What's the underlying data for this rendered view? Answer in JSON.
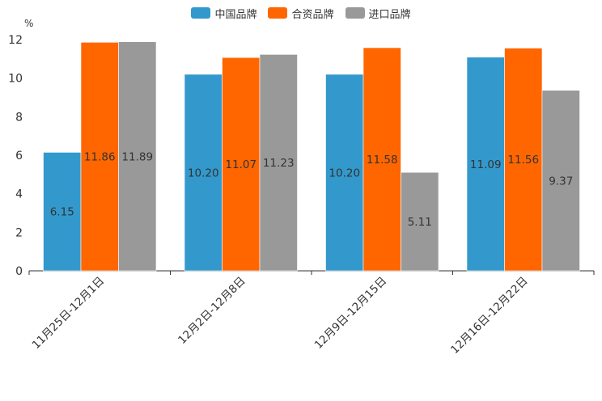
{
  "chart_data": {
    "type": "bar",
    "ylabel": "%",
    "ylim": [
      0,
      12
    ],
    "yticks": [
      "0",
      "2",
      "4",
      "6",
      "8",
      "10",
      "12"
    ],
    "categories": [
      "11月25日-12月1日",
      "12月2日-12月8日",
      "12月9日-12月15日",
      "12月16日-12月22日"
    ],
    "series": [
      {
        "name": "中国品牌",
        "color": "#3399cc",
        "values": [
          6.15,
          10.2,
          10.2,
          11.09
        ],
        "labels": [
          "6.15",
          "10.20",
          "10.20",
          "11.09"
        ]
      },
      {
        "name": "合资品牌",
        "color": "#ff6600",
        "values": [
          11.86,
          11.07,
          11.58,
          11.56
        ],
        "labels": [
          "11.86",
          "11.07",
          "11.58",
          "11.56"
        ]
      },
      {
        "name": "进口品牌",
        "color": "#999999",
        "values": [
          11.89,
          11.23,
          5.11,
          9.37
        ],
        "labels": [
          "11.89",
          "11.23",
          "5.11",
          "9.37"
        ]
      }
    ],
    "legend_position": "top-center",
    "grid": false
  }
}
